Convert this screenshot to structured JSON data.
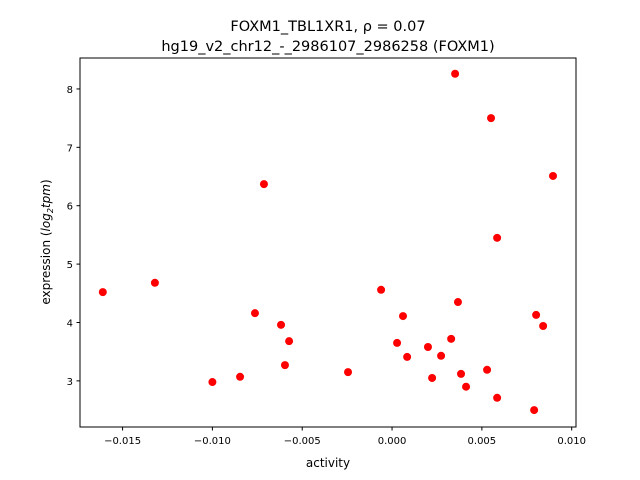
{
  "chart_data": {
    "type": "scatter",
    "title_line1": "FOXM1_TBL1XR1, ρ = 0.07",
    "title_line2": "hg19_v2_chr12_-_2986107_2986258 (FOXM1)",
    "xlabel": "activity",
    "ylabel_prefix": "expression (",
    "ylabel_math": "log",
    "ylabel_sub": "2",
    "ylabel_math2": "tpm",
    "ylabel_suffix": ")",
    "xlim": [
      -0.01737,
      0.01024
    ],
    "ylim": [
      2.21,
      8.53
    ],
    "xticks": [
      -0.015,
      -0.01,
      -0.005,
      0.0,
      0.005,
      0.01
    ],
    "xtick_labels": [
      "−0.015",
      "−0.010",
      "−0.005",
      "0.000",
      "0.005",
      "0.010"
    ],
    "yticks": [
      3,
      4,
      5,
      6,
      7,
      8
    ],
    "ytick_labels": [
      "3",
      "4",
      "5",
      "6",
      "7",
      "8"
    ],
    "marker_color": "#ff0000",
    "grid": false,
    "points": [
      [
        -0.0161,
        4.52
      ],
      [
        -0.0132,
        4.68
      ],
      [
        -0.01,
        2.98
      ],
      [
        -0.00846,
        3.07
      ],
      [
        -0.00763,
        4.16
      ],
      [
        -0.00713,
        6.37
      ],
      [
        -0.00618,
        3.96
      ],
      [
        -0.00573,
        3.68
      ],
      [
        -0.00596,
        3.27
      ],
      [
        -0.00245,
        3.15
      ],
      [
        -0.00061,
        4.56
      ],
      [
        0.00028,
        3.65
      ],
      [
        0.00061,
        4.11
      ],
      [
        0.00084,
        3.41
      ],
      [
        0.002,
        3.58
      ],
      [
        0.00223,
        3.05
      ],
      [
        0.00273,
        3.43
      ],
      [
        0.00329,
        3.72
      ],
      [
        0.00351,
        8.26
      ],
      [
        0.00367,
        4.35
      ],
      [
        0.00384,
        3.12
      ],
      [
        0.00412,
        2.9
      ],
      [
        0.00529,
        3.19
      ],
      [
        0.00551,
        7.5
      ],
      [
        0.00585,
        5.45
      ],
      [
        0.00585,
        2.71
      ],
      [
        0.00791,
        2.5
      ],
      [
        0.00802,
        4.13
      ],
      [
        0.00841,
        3.94
      ],
      [
        0.00896,
        6.51
      ]
    ]
  }
}
